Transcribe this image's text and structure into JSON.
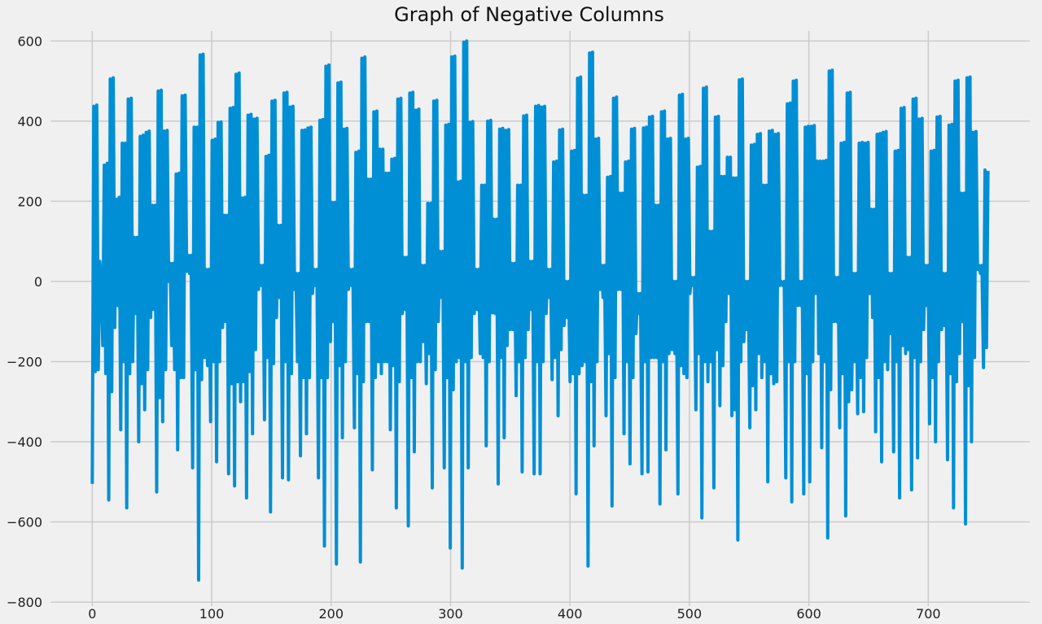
{
  "chart_data": {
    "type": "line",
    "title": "Graph of Negative Columns",
    "xlabel": "",
    "ylabel": "",
    "xlim": [
      -35,
      785
    ],
    "ylim": [
      -810,
      625
    ],
    "xticks": [
      0,
      100,
      200,
      300,
      400,
      500,
      600,
      700
    ],
    "xtick_labels": [
      "0",
      "100",
      "200",
      "300",
      "400",
      "500",
      "600",
      "700"
    ],
    "yticks": [
      -800,
      -600,
      -400,
      -200,
      0,
      200,
      400,
      600
    ],
    "ytick_labels": [
      "−800",
      "−600",
      "−400",
      "−200",
      "0",
      "200",
      "400",
      "600"
    ],
    "grid": true,
    "legend": "none",
    "line_color": "#008fd5",
    "series": [
      {
        "name": "negative columns",
        "x_start": 0,
        "x_step": 1,
        "values": [
          -505,
          437,
          -225,
          440,
          -220,
          50,
          10,
          -160,
          290,
          -230,
          295,
          -545,
          505,
          -275,
          508,
          -115,
          205,
          -60,
          210,
          -370,
          345,
          -200,
          345,
          -565,
          455,
          -230,
          457,
          -200,
          110,
          -80,
          110,
          -400,
          362,
          -255,
          365,
          -320,
          372,
          -220,
          375,
          -90,
          190,
          -70,
          190,
          -525,
          475,
          -290,
          477,
          -350,
          375,
          -220,
          377,
          0,
          45,
          -160,
          45,
          -220,
          268,
          -420,
          270,
          -240,
          463,
          -240,
          465,
          25,
          65,
          20,
          65,
          -465,
          385,
          -220,
          385,
          -745,
          565,
          -245,
          567,
          -190,
          30,
          -210,
          30,
          -350,
          352,
          -200,
          355,
          -450,
          397,
          -200,
          398,
          -115,
          165,
          -100,
          165,
          -480,
          432,
          -255,
          434,
          -510,
          517,
          -250,
          520,
          -300,
          208,
          -250,
          210,
          -540,
          415,
          -225,
          417,
          -380,
          405,
          -170,
          407,
          -20,
          40,
          -10,
          40,
          -345,
          312,
          -190,
          315,
          -575,
          450,
          -205,
          452,
          -90,
          140,
          -40,
          140,
          -490,
          470,
          -200,
          472,
          -495,
          435,
          -230,
          437,
          -20,
          20,
          -200,
          20,
          -435,
          377,
          -240,
          378,
          -380,
          383,
          -240,
          385,
          -30,
          30,
          -10,
          30,
          -490,
          402,
          -240,
          404,
          -660,
          537,
          -240,
          540,
          -150,
          197,
          -100,
          197,
          -705,
          495,
          -210,
          497,
          -390,
          380,
          -200,
          382,
          -20,
          30,
          -10,
          30,
          -365,
          322,
          -230,
          325,
          -700,
          557,
          -250,
          560,
          -100,
          255,
          -100,
          255,
          -470,
          423,
          -240,
          425,
          -200,
          330,
          -230,
          330,
          -200,
          270,
          -200,
          270,
          -370,
          305,
          -210,
          307,
          -565,
          455,
          -250,
          457,
          -80,
          60,
          -70,
          60,
          -610,
          470,
          -240,
          472,
          -425,
          427,
          -200,
          430,
          -200,
          40,
          -150,
          40,
          -255,
          195,
          -180,
          195,
          -515,
          450,
          -220,
          452,
          -100,
          75,
          -40,
          75,
          -465,
          390,
          -240,
          392,
          -665,
          560,
          -270,
          562,
          -200,
          248,
          -190,
          250,
          -715,
          597,
          -200,
          600,
          -465,
          397,
          -190,
          399,
          -80,
          30,
          -70,
          30,
          -180,
          240,
          -190,
          240,
          -410,
          400,
          -200,
          402,
          -78,
          155,
          -80,
          155,
          -505,
          380,
          -190,
          382,
          -390,
          377,
          -160,
          379,
          -120,
          45,
          -120,
          45,
          -285,
          240,
          -200,
          240,
          -475,
          413,
          -190,
          415,
          -120,
          50,
          -70,
          50,
          -480,
          437,
          -200,
          439,
          -480,
          435,
          -200,
          437,
          -80,
          30,
          -40,
          30,
          -245,
          298,
          -190,
          300,
          -335,
          378,
          -170,
          380,
          -110,
          0,
          -90,
          0,
          -250,
          325,
          -230,
          327,
          -530,
          507,
          -230,
          510,
          -210,
          215,
          -200,
          215,
          -710,
          570,
          -250,
          572,
          -410,
          355,
          -200,
          357,
          -20,
          40,
          -40,
          40,
          -335,
          260,
          -180,
          262,
          -560,
          457,
          -240,
          460,
          -20,
          220,
          -20,
          220,
          -380,
          298,
          -200,
          300,
          -455,
          380,
          -240,
          382,
          -130,
          -30,
          -80,
          -30,
          -480,
          383,
          -200,
          385,
          -475,
          410,
          -190,
          412,
          -190,
          190,
          -190,
          190,
          -555,
          423,
          -200,
          425,
          -420,
          355,
          -180,
          357,
          -170,
          0,
          -180,
          0,
          -530,
          465,
          -210,
          467,
          -230,
          355,
          -240,
          357,
          -30,
          10,
          -10,
          10,
          -320,
          285,
          -180,
          287,
          -590,
          482,
          -200,
          485,
          -250,
          125,
          -200,
          125,
          -515,
          410,
          -170,
          412,
          -310,
          262,
          -210,
          262,
          -100,
          310,
          -30,
          310,
          -335,
          258,
          -320,
          258,
          -645,
          503,
          -200,
          505,
          -150,
          0,
          -120,
          0,
          -365,
          340,
          -260,
          342,
          -320,
          367,
          -180,
          369,
          -240,
          240,
          -200,
          240,
          -500,
          375,
          -230,
          377,
          -255,
          367,
          -250,
          369,
          -10,
          0,
          -10,
          0,
          -490,
          443,
          -200,
          445,
          -550,
          500,
          -200,
          502,
          -60,
          0,
          -60,
          0,
          -530,
          385,
          -230,
          387,
          -500,
          387,
          -200,
          389,
          -30,
          300,
          -180,
          300,
          -415,
          300,
          -200,
          302,
          -640,
          525,
          -270,
          527,
          -100,
          10,
          -100,
          10,
          -365,
          345,
          -230,
          347,
          -585,
          470,
          -300,
          472,
          -270,
          20,
          -200,
          20,
          -330,
          345,
          -240,
          347,
          -325,
          345,
          -190,
          347,
          -30,
          180,
          -90,
          180,
          -375,
          367,
          -240,
          369,
          -450,
          372,
          -200,
          374,
          -220,
          20,
          -130,
          20,
          -425,
          325,
          -200,
          327,
          -540,
          432,
          -160,
          434,
          -180,
          60,
          -170,
          60,
          -520,
          455,
          -190,
          457,
          -440,
          405,
          -200,
          407,
          -120,
          40,
          -60,
          40,
          -355,
          325,
          -240,
          327,
          -400,
          410,
          -200,
          412,
          -120,
          20,
          -110,
          20,
          -445,
          390,
          -230,
          392,
          -565,
          500,
          -250,
          502,
          -180,
          220,
          -100,
          220,
          -605,
          508,
          -260,
          510,
          -400,
          372,
          -190,
          374,
          30,
          40,
          20,
          40,
          -215,
          278,
          -165,
          276
        ]
      }
    ]
  }
}
